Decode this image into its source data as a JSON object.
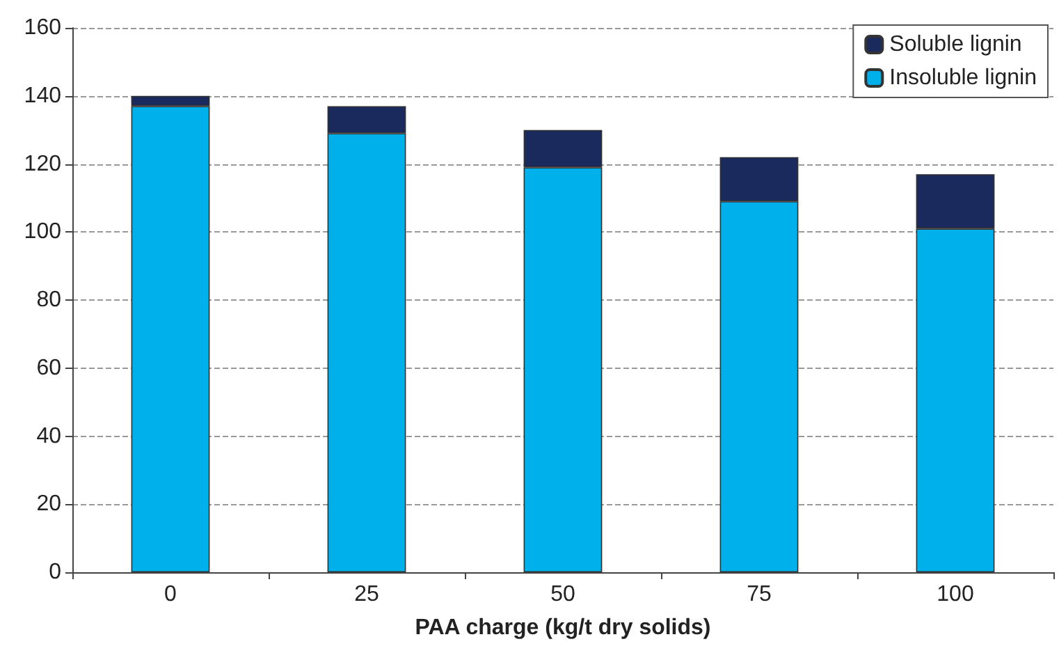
{
  "chart_data": {
    "type": "bar",
    "stacked": true,
    "xlabel": "PAA charge (kg/t dry solids)",
    "categories": [
      "0",
      "25",
      "50",
      "75",
      "100"
    ],
    "series": [
      {
        "name": "Insoluble lignin",
        "color": "#00b0ea",
        "values": [
          137,
          129,
          119,
          109,
          101
        ]
      },
      {
        "name": "Soluble lignin",
        "color": "#1b2a5c",
        "values": [
          3,
          8,
          11,
          13,
          16
        ]
      }
    ],
    "ylim": [
      0,
      160
    ],
    "yticks": [
      0,
      20,
      40,
      60,
      80,
      100,
      120,
      140,
      160
    ],
    "grid": "y",
    "legend": "top right"
  }
}
